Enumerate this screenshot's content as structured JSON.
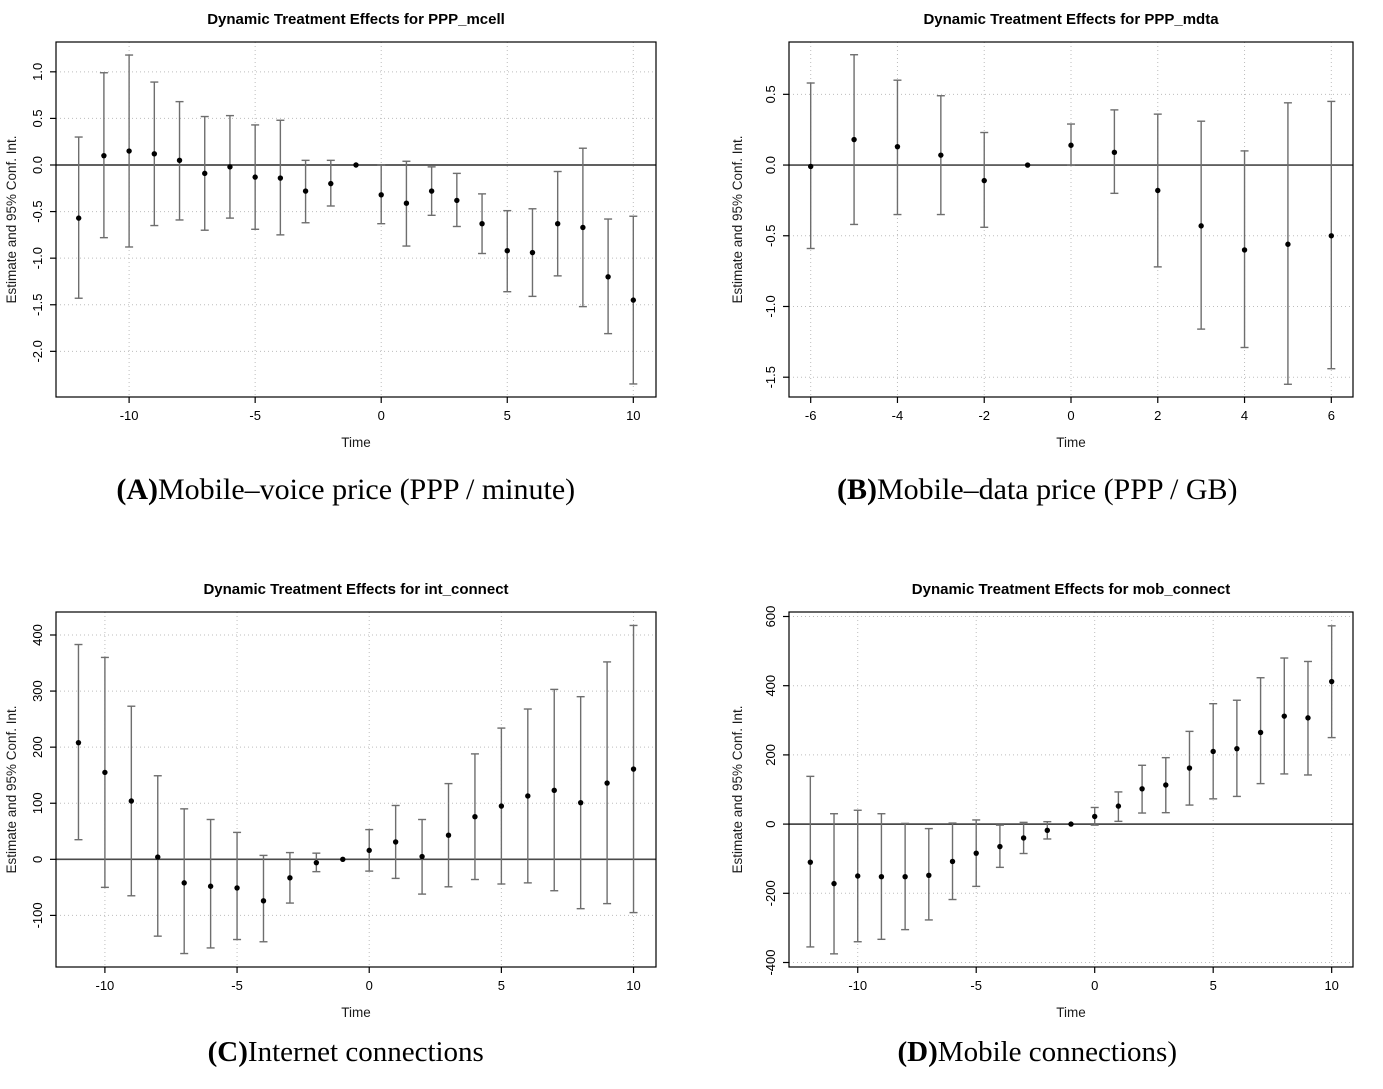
{
  "figure": {
    "captions": [
      {
        "label": "(A)",
        "text": " Mobile–voice price (PPP / minute)"
      },
      {
        "label": "(B)",
        "text": " Mobile–data price (PPP / GB)"
      },
      {
        "label": "(C)",
        "text": " Internet connections"
      },
      {
        "label": "(D)",
        "text": " Mobile connections)"
      }
    ],
    "colors": {
      "background": "#ffffff",
      "point": "#000000",
      "errorbar": "#6e6e6e",
      "grid": "#bdbdbd",
      "box": "#000000",
      "zero_line": "#4a4a4a",
      "text": "#000000"
    }
  },
  "chart_data": [
    {
      "type": "scatter",
      "subtype": "errorbar",
      "title": "Dynamic Treatment Effects for PPP_mcell",
      "xlabel": "Time",
      "ylabel": "Estimate and 95% Conf. Int.",
      "grid": true,
      "reference_line_y": 0,
      "xlim": [
        -12.9,
        10.9
      ],
      "ylim": [
        -2.49,
        1.32
      ],
      "xticks": [
        -10,
        -5,
        0,
        5,
        10
      ],
      "xtick_labels": [
        "-10",
        "-5",
        "0",
        "5",
        "10"
      ],
      "yticks": [
        1.0,
        0.5,
        0.0,
        -0.5,
        -1.0,
        -1.5,
        -2.0
      ],
      "ytick_labels": [
        "1.0",
        "0.5",
        "0.0",
        "-0.5",
        "-1.0",
        "-1.5",
        "-2.0"
      ],
      "x": [
        -12,
        -11,
        -10,
        -9,
        -8,
        -7,
        -6,
        -5,
        -4,
        -3,
        -2,
        -1,
        0,
        1,
        2,
        3,
        4,
        5,
        6,
        7,
        8,
        9,
        10
      ],
      "estimate": [
        -0.57,
        0.1,
        0.15,
        0.12,
        0.05,
        -0.09,
        -0.02,
        -0.13,
        -0.14,
        -0.28,
        -0.2,
        0.0,
        -0.32,
        -0.41,
        -0.28,
        -0.38,
        -0.63,
        -0.92,
        -0.94,
        -0.63,
        -0.67,
        -1.2,
        -1.45
      ],
      "ci_lower": [
        -1.43,
        -0.78,
        -0.88,
        -0.65,
        -0.59,
        -0.7,
        -0.57,
        -0.69,
        -0.75,
        -0.62,
        -0.44,
        null,
        -0.63,
        -0.87,
        -0.54,
        -0.66,
        -0.95,
        -1.36,
        -1.41,
        -1.19,
        -1.52,
        -1.81,
        -2.35
      ],
      "ci_upper": [
        0.3,
        0.99,
        1.18,
        0.89,
        0.68,
        0.52,
        0.53,
        0.43,
        0.48,
        0.05,
        0.05,
        null,
        0.0,
        0.04,
        -0.02,
        -0.09,
        -0.31,
        -0.49,
        -0.47,
        -0.07,
        0.18,
        -0.58,
        -0.55
      ]
    },
    {
      "type": "scatter",
      "subtype": "errorbar",
      "title": "Dynamic Treatment Effects for PPP_mdta",
      "xlabel": "Time",
      "ylabel": "Estimate and 95% Conf. Int.",
      "grid": true,
      "reference_line_y": 0,
      "xlim": [
        -6.5,
        6.5
      ],
      "ylim": [
        -1.64,
        0.87
      ],
      "xticks": [
        -6,
        -4,
        -2,
        0,
        2,
        4,
        6
      ],
      "xtick_labels": [
        "-6",
        "-4",
        "-2",
        "0",
        "2",
        "4",
        "6"
      ],
      "yticks": [
        0.5,
        0.0,
        -0.5,
        -1.0,
        -1.5
      ],
      "ytick_labels": [
        "0.5",
        "0.0",
        "-0.5",
        "-1.0",
        "-1.5"
      ],
      "x": [
        -6,
        -5,
        -4,
        -3,
        -2,
        -1,
        0,
        1,
        2,
        3,
        4,
        5,
        6
      ],
      "estimate": [
        -0.01,
        0.18,
        0.13,
        0.07,
        -0.11,
        0.0,
        0.14,
        0.09,
        -0.18,
        -0.43,
        -0.6,
        -0.56,
        -0.5
      ],
      "ci_lower": [
        -0.59,
        -0.42,
        -0.35,
        -0.35,
        -0.44,
        null,
        0.0,
        -0.2,
        -0.72,
        -1.16,
        -1.29,
        -1.55,
        -1.44
      ],
      "ci_upper": [
        0.58,
        0.78,
        0.6,
        0.49,
        0.23,
        null,
        0.29,
        0.39,
        0.36,
        0.31,
        0.1,
        0.44,
        0.45
      ]
    },
    {
      "type": "scatter",
      "subtype": "errorbar",
      "title": "Dynamic Treatment Effects for int_connect",
      "xlabel": "Time",
      "ylabel": "Estimate and 95% Conf. Int.",
      "grid": true,
      "reference_line_y": 0,
      "xlim": [
        -11.85,
        10.85
      ],
      "ylim": [
        -192,
        441
      ],
      "xticks": [
        -10,
        -5,
        0,
        5,
        10
      ],
      "xtick_labels": [
        "-10",
        "-5",
        "0",
        "5",
        "10"
      ],
      "yticks": [
        400,
        300,
        200,
        100,
        0,
        -100
      ],
      "ytick_labels": [
        "400",
        "300",
        "200",
        "100",
        "0",
        "-100"
      ],
      "x": [
        -11,
        -10,
        -9,
        -8,
        -7,
        -6,
        -5,
        -4,
        -3,
        -2,
        -1,
        0,
        1,
        2,
        3,
        4,
        5,
        6,
        7,
        8,
        9,
        10
      ],
      "estimate": [
        208,
        155,
        104,
        4,
        -42,
        -48,
        -51,
        -74,
        -33,
        -6,
        0,
        16,
        31,
        5,
        43,
        76,
        95,
        113,
        123,
        101,
        136,
        161
      ],
      "ci_lower": [
        35,
        -50,
        -65,
        -137,
        -168,
        -158,
        -143,
        -147,
        -78,
        -22,
        null,
        -21,
        -34,
        -62,
        -49,
        -36,
        -44,
        -42,
        -56,
        -88,
        -79,
        -95
      ],
      "ci_upper": [
        383,
        360,
        273,
        149,
        90,
        71,
        48,
        7,
        12,
        11,
        null,
        53,
        96,
        71,
        135,
        188,
        234,
        268,
        303,
        290,
        352,
        417
      ]
    },
    {
      "type": "scatter",
      "subtype": "errorbar",
      "title": "Dynamic Treatment Effects for mob_connect",
      "xlabel": "Time",
      "ylabel": "Estimate and 95% Conf. Int.",
      "grid": true,
      "reference_line_y": 0,
      "xlim": [
        -12.9,
        10.9
      ],
      "ylim": [
        -413,
        613
      ],
      "xticks": [
        -10,
        -5,
        0,
        5,
        10
      ],
      "xtick_labels": [
        "-10",
        "-5",
        "0",
        "5",
        "10"
      ],
      "yticks": [
        600,
        400,
        200,
        0,
        -200,
        -400
      ],
      "ytick_labels": [
        "600",
        "400",
        "200",
        "0",
        "-200",
        "-400"
      ],
      "x": [
        -12,
        -11,
        -10,
        -9,
        -8,
        -7,
        -6,
        -5,
        -4,
        -3,
        -2,
        -1,
        0,
        1,
        2,
        3,
        4,
        5,
        6,
        7,
        8,
        9,
        10
      ],
      "estimate": [
        -110,
        -172,
        -150,
        -152,
        -152,
        -148,
        -108,
        -84,
        -65,
        -40,
        -18,
        0,
        22,
        52,
        102,
        113,
        162,
        210,
        218,
        265,
        312,
        307,
        412
      ],
      "ci_lower": [
        -355,
        -375,
        -340,
        -333,
        -305,
        -277,
        -218,
        -180,
        -125,
        -85,
        -43,
        null,
        -3,
        8,
        32,
        33,
        55,
        73,
        80,
        117,
        145,
        142,
        250
      ],
      "ci_upper": [
        138,
        30,
        40,
        30,
        2,
        -13,
        3,
        12,
        -3,
        5,
        7,
        null,
        48,
        93,
        170,
        192,
        268,
        348,
        358,
        423,
        480,
        470,
        573
      ]
    }
  ]
}
